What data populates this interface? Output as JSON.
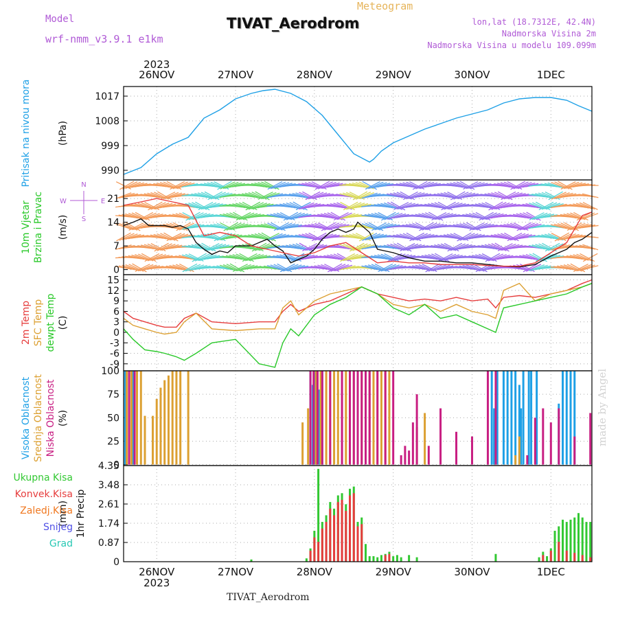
{
  "header": {
    "model_label": "Model",
    "model_value": "wrf-nmm_v3.9.1 e1km",
    "meteogram_label": "Meteogram",
    "station_title": "TIVAT_Aerodrom",
    "coord_text": "lon,lat (18.7312E, 42.4N)",
    "elevation_text": "Nadmorska Visina 2m",
    "model_elevation_text": "Nadmorska Visina u modelu 109.099m",
    "footer_title": "TIVAT_Aerodrom",
    "watermark": "made by Angel"
  },
  "colors": {
    "pressure": "#1ea0e6",
    "temp": "#e63c3c",
    "sfc_temp": "#dca032",
    "dewpt": "#28c828",
    "high_cloud": "#1ea0e6",
    "mid_cloud": "#dca032",
    "low_cloud": "#c81e82",
    "total_precip": "#32c832",
    "conv_precip": "#e63c3c",
    "frozen_precip": "#f07820",
    "snow": "#5050e6",
    "graupel": "#28c8b4",
    "label_purple": "#b05ad6",
    "axis": "#000000"
  },
  "chart_data": {
    "type": "line",
    "x_axis": {
      "year": "2023",
      "tick_labels": [
        "26NOV",
        "27NOV",
        "28NOV",
        "29NOV",
        "30NOV",
        "1DEC"
      ],
      "tick_days": [
        1,
        2,
        3,
        4,
        5,
        6
      ],
      "range_days": [
        0.58,
        6.52
      ]
    },
    "panels": [
      {
        "id": "pressure",
        "type": "line",
        "ylabel": "Pritisak na nivou mora",
        "unit": "(hPa)",
        "yticks": [
          990,
          999,
          1008,
          1017
        ],
        "ylim": [
          986.5,
          1020.5
        ],
        "series": [
          {
            "name": "Pritisak na nivou mora",
            "color_key": "pressure",
            "x": [
              0.58,
              0.8,
              1.0,
              1.2,
              1.4,
              1.6,
              1.8,
              2.0,
              2.2,
              2.35,
              2.5,
              2.7,
              2.9,
              3.1,
              3.3,
              3.5,
              3.7,
              3.75,
              3.85,
              4.0,
              4.2,
              4.4,
              4.6,
              4.8,
              5.0,
              5.2,
              5.4,
              5.6,
              5.8,
              6.0,
              6.2,
              6.35,
              6.52
            ],
            "y": [
              988.5,
              991,
              996,
              999.5,
              1002,
              1009,
              1012,
              1016,
              1018,
              1019,
              1019.5,
              1018,
              1015,
              1010,
              1003,
              996,
              993,
              994,
              997,
              1000,
              1002.5,
              1005,
              1007,
              1009,
              1010.5,
              1012,
              1014.5,
              1016,
              1016.5,
              1016.5,
              1015.5,
              1013.5,
              1011.5
            ]
          }
        ]
      },
      {
        "id": "wind",
        "type": "line",
        "ylabel": "10m Vjetar Brzina i Pravac",
        "unit": "(m/s)",
        "compass": [
          "N",
          "E",
          "S",
          "W"
        ],
        "yticks": [
          0,
          7,
          14,
          21
        ],
        "ylim": [
          -1.5,
          26.5
        ],
        "series": [
          {
            "name": "wind speed",
            "color": "#111111",
            "x": [
              0.58,
              0.7,
              0.8,
              0.9,
              1.0,
              1.1,
              1.2,
              1.3,
              1.4,
              1.5,
              1.6,
              1.7,
              1.8,
              1.9,
              2.0,
              2.2,
              2.4,
              2.5,
              2.6,
              2.7,
              2.8,
              2.9,
              3.0,
              3.1,
              3.2,
              3.3,
              3.4,
              3.5,
              3.55,
              3.6,
              3.7,
              3.8,
              4.0,
              4.2,
              4.4,
              4.6,
              4.8,
              5.0,
              5.2,
              5.4,
              5.6,
              5.8,
              6.0,
              6.2,
              6.3,
              6.4,
              6.52
            ],
            "y": [
              13,
              14,
              15,
              13,
              13,
              13,
              12.5,
              13,
              12,
              8,
              6,
              4.5,
              5.5,
              5,
              7,
              7,
              9,
              7,
              5.5,
              2,
              3,
              4,
              6,
              9,
              11,
              12,
              11,
              12,
              14,
              13,
              11,
              6,
              5,
              3.5,
              2.5,
              2.5,
              2,
              2,
              1.5,
              1,
              0.8,
              1.5,
              4,
              6,
              8,
              9,
              11
            ]
          },
          {
            "name": "wind gust",
            "color": "#e63c3c",
            "x": [
              0.58,
              0.8,
              1.0,
              1.2,
              1.4,
              1.6,
              1.8,
              2.0,
              2.2,
              2.4,
              2.6,
              2.8,
              3.0,
              3.2,
              3.4,
              3.6,
              3.8,
              4.0,
              4.2,
              4.4,
              4.6,
              4.8,
              5.0,
              5.2,
              5.4,
              5.6,
              5.8,
              6.0,
              6.2,
              6.4,
              6.52
            ],
            "y": [
              19,
              20,
              21,
              20,
              19,
              10,
              11,
              10,
              7,
              6,
              5,
              4,
              5,
              7,
              8,
              5,
              2,
              2.5,
              2,
              2,
              1.5,
              1.5,
              1.5,
              1.2,
              1,
              1,
              2,
              5,
              8,
              16,
              17
            ]
          }
        ]
      },
      {
        "id": "temperature",
        "type": "line",
        "ylabel": [
          "2m Temp",
          "SFC Temp",
          "dewpt Temp"
        ],
        "unit": "(C)",
        "yticks": [
          -9,
          -6,
          -3,
          0,
          3,
          6,
          9,
          12,
          15
        ],
        "ylim": [
          -11,
          16.5
        ],
        "series": [
          {
            "name": "2m Temp",
            "color_key": "temp",
            "x": [
              0.58,
              0.7,
              0.85,
              1.0,
              1.1,
              1.25,
              1.35,
              1.5,
              1.7,
              2.0,
              2.3,
              2.5,
              2.6,
              2.7,
              2.8,
              3.0,
              3.2,
              3.4,
              3.6,
              3.8,
              4.0,
              4.2,
              4.4,
              4.6,
              4.8,
              5.0,
              5.2,
              5.3,
              5.4,
              5.6,
              5.8,
              6.0,
              6.2,
              6.4,
              6.52
            ],
            "y": [
              6,
              4,
              3,
              2,
              1.5,
              1.5,
              4,
              5.5,
              3,
              2.5,
              3,
              3,
              6,
              8,
              6,
              8,
              9,
              11,
              13,
              11,
              10,
              9,
              9.5,
              9,
              10,
              9,
              9.5,
              7,
              10,
              10.5,
              10,
              11,
              12,
              14,
              15
            ]
          },
          {
            "name": "SFC Temp",
            "color_key": "sfc_temp",
            "x": [
              0.58,
              0.7,
              0.85,
              1.0,
              1.1,
              1.25,
              1.35,
              1.5,
              1.7,
              2.0,
              2.3,
              2.5,
              2.6,
              2.7,
              2.8,
              3.0,
              3.2,
              3.4,
              3.6,
              3.8,
              4.0,
              4.2,
              4.4,
              4.6,
              4.8,
              5.0,
              5.2,
              5.3,
              5.4,
              5.6,
              5.8,
              6.0,
              6.2,
              6.4,
              6.52
            ],
            "y": [
              4,
              2,
              1,
              0,
              -0.5,
              0,
              3,
              5.5,
              1,
              0.5,
              1,
              1,
              7,
              9,
              5,
              9,
              11,
              12,
              13,
              11,
              8,
              7,
              8,
              6,
              8,
              6,
              5,
              4,
              12,
              14,
              9,
              11,
              12,
              13,
              14
            ]
          },
          {
            "name": "dewpt Temp",
            "color_key": "dewpt",
            "x": [
              0.58,
              0.7,
              0.85,
              1.0,
              1.1,
              1.25,
              1.35,
              1.5,
              1.7,
              2.0,
              2.3,
              2.5,
              2.6,
              2.7,
              2.8,
              3.0,
              3.2,
              3.4,
              3.6,
              3.8,
              4.0,
              4.2,
              4.4,
              4.6,
              4.8,
              5.0,
              5.2,
              5.3,
              5.4,
              5.6,
              5.8,
              6.0,
              6.2,
              6.4,
              6.52
            ],
            "y": [
              1,
              -2,
              -5,
              -5.5,
              -6,
              -7,
              -8,
              -6,
              -3,
              -2,
              -9,
              -10,
              -3,
              1,
              -1,
              5,
              8,
              10,
              13,
              11,
              7,
              5,
              8,
              4,
              5,
              3,
              1,
              0,
              7,
              8,
              9,
              10,
              11,
              13,
              14
            ]
          }
        ]
      },
      {
        "id": "clouds",
        "type": "bar",
        "ylabel": [
          "Visoka Oblacnost",
          "Srednja Oblacnost",
          "Niska Oblacnost"
        ],
        "unit": "(%)",
        "yticks": [
          0,
          25,
          50,
          75,
          100
        ],
        "ylim": [
          -1,
          100
        ],
        "series": [
          {
            "name": "Visoka Oblacnost",
            "color_key": "high_cloud",
            "x": [
              0.6,
              0.65,
              0.7,
              2.95,
              2.98,
              3.0,
              3.03,
              3.06,
              3.1,
              5.25,
              5.28,
              5.32,
              5.4,
              5.45,
              5.5,
              5.55,
              5.6,
              5.62,
              5.65,
              5.72,
              5.75,
              5.82,
              6.1,
              6.15,
              6.2,
              6.25,
              6.3
            ],
            "y": [
              100,
              100,
              100,
              100,
              85,
              100,
              100,
              80,
              100,
              100,
              60,
              100,
              100,
              100,
              100,
              100,
              85,
              60,
              100,
              100,
              100,
              100,
              65,
              100,
              100,
              100,
              100
            ]
          },
          {
            "name": "Srednja Oblacnost",
            "color_key": "mid_cloud",
            "x": [
              0.62,
              0.68,
              0.75,
              0.8,
              0.85,
              0.95,
              1.0,
              1.05,
              1.1,
              1.15,
              1.2,
              1.25,
              1.3,
              1.4,
              2.85,
              2.92,
              3.02,
              3.08,
              3.15,
              3.2,
              3.25,
              3.3,
              3.35,
              3.4,
              3.45,
              3.5,
              3.6,
              3.7,
              3.75,
              3.8,
              3.85,
              3.9,
              3.95,
              4.3,
              4.4,
              5.3,
              5.55,
              5.6
            ],
            "y": [
              100,
              100,
              100,
              100,
              52,
              52,
              70,
              82,
              90,
              95,
              100,
              100,
              100,
              100,
              45,
              60,
              100,
              100,
              100,
              100,
              100,
              100,
              100,
              100,
              100,
              100,
              100,
              100,
              100,
              100,
              100,
              100,
              100,
              40,
              55,
              10,
              10,
              30
            ]
          },
          {
            "name": "Niska Oblacnost",
            "color_key": "low_cloud",
            "x": [
              0.65,
              0.72,
              2.95,
              2.99,
              3.04,
              3.1,
              3.2,
              3.35,
              3.45,
              3.5,
              3.55,
              3.6,
              3.65,
              3.7,
              3.8,
              3.9,
              4.0,
              4.1,
              4.15,
              4.2,
              4.25,
              4.3,
              4.45,
              4.6,
              4.8,
              5.0,
              5.2,
              5.3,
              5.7,
              5.8,
              5.9,
              6.0,
              6.1,
              6.3,
              6.5
            ],
            "y": [
              100,
              100,
              100,
              100,
              100,
              100,
              100,
              100,
              100,
              100,
              100,
              100,
              100,
              100,
              100,
              100,
              100,
              10,
              20,
              15,
              45,
              75,
              20,
              60,
              35,
              30,
              100,
              100,
              10,
              50,
              60,
              45,
              60,
              30,
              55
            ]
          }
        ]
      },
      {
        "id": "precip",
        "type": "bar",
        "ylabel": "1hr Precip",
        "unit": "(mm)",
        "legend": [
          "Ukupna Kisa",
          "Konvek.Kisa",
          "Zaledj.Kisa",
          "Snijeg",
          "Grad"
        ],
        "yticks": [
          0,
          0.87,
          1.74,
          2.61,
          3.48,
          4.35
        ],
        "ylim": [
          0,
          4.35
        ],
        "series": [
          {
            "name": "Ukupna Kisa",
            "color_key": "total_precip",
            "x": [
              2.2,
              2.9,
              2.95,
              3.0,
              3.05,
              3.1,
              3.15,
              3.2,
              3.25,
              3.3,
              3.35,
              3.4,
              3.45,
              3.5,
              3.55,
              3.6,
              3.65,
              3.7,
              3.75,
              3.8,
              3.85,
              3.9,
              3.95,
              4.0,
              4.05,
              4.1,
              4.2,
              4.3,
              5.3,
              5.85,
              5.9,
              5.95,
              6.0,
              6.05,
              6.1,
              6.15,
              6.2,
              6.25,
              6.3,
              6.35,
              6.4,
              6.45,
              6.5
            ],
            "y": [
              0.1,
              0.15,
              0.6,
              1.4,
              4.2,
              1.8,
              2.1,
              2.7,
              2.4,
              3.0,
              3.1,
              2.6,
              3.3,
              3.4,
              1.8,
              2.0,
              0.8,
              0.25,
              0.25,
              0.2,
              0.3,
              0.35,
              0.45,
              0.25,
              0.3,
              0.2,
              0.3,
              0.2,
              0.35,
              0.2,
              0.45,
              0.25,
              0.6,
              1.4,
              1.6,
              1.9,
              1.8,
              1.9,
              2.0,
              2.2,
              2.0,
              1.8,
              1.8
            ]
          },
          {
            "name": "Konvek.Kisa",
            "color_key": "conv_precip",
            "x": [
              2.95,
              3.0,
              3.05,
              3.1,
              3.15,
              3.2,
              3.25,
              3.3,
              3.35,
              3.4,
              3.45,
              3.5,
              3.55,
              3.6,
              3.9,
              3.95,
              5.9,
              6.0,
              6.1,
              6.2,
              6.3,
              6.4,
              6.5
            ],
            "y": [
              0.5,
              1.1,
              0.9,
              1.5,
              1.8,
              2.4,
              2.1,
              2.7,
              2.8,
              2.3,
              3.0,
              3.1,
              1.6,
              1.7,
              0.3,
              0.35,
              0.3,
              0.5,
              0.9,
              0.5,
              0.4,
              0.3,
              0.2
            ]
          }
        ]
      }
    ]
  }
}
